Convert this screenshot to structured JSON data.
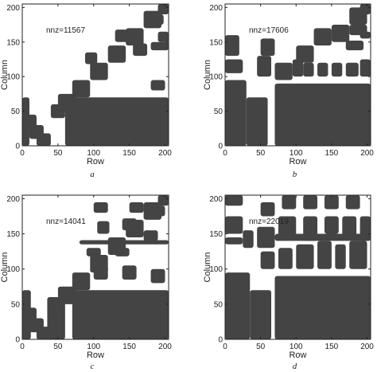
{
  "chart_data": [
    {
      "type": "heatmap",
      "panel": "a",
      "caption": "a",
      "annotation": "nnz=11567",
      "xlabel": "Row",
      "ylabel": "Column",
      "xlim": [
        0,
        205
      ],
      "ylim": [
        0,
        205
      ],
      "xticks": [
        0,
        50,
        100,
        150,
        200
      ],
      "yticks": [
        0,
        50,
        100,
        150,
        200
      ],
      "grid": false,
      "nonzero_regions": [
        [
          70,
          0,
          205,
          70
        ],
        [
          0,
          0,
          10,
          70
        ],
        [
          0,
          25,
          20,
          45
        ],
        [
          10,
          10,
          30,
          30
        ],
        [
          20,
          0,
          40,
          18
        ],
        [
          40,
          40,
          60,
          60
        ],
        [
          50,
          50,
          75,
          75
        ],
        [
          70,
          70,
          95,
          95
        ],
        [
          95,
          95,
          120,
          120
        ],
        [
          120,
          120,
          145,
          145
        ],
        [
          145,
          145,
          170,
          170
        ],
        [
          170,
          170,
          195,
          195
        ],
        [
          190,
          190,
          205,
          205
        ],
        [
          60,
          0,
          75,
          70
        ],
        [
          88,
          118,
          105,
          135
        ],
        [
          130,
          150,
          148,
          168
        ],
        [
          155,
          130,
          175,
          148
        ],
        [
          180,
          175,
          198,
          190
        ],
        [
          180,
          138,
          205,
          150
        ],
        [
          190,
          150,
          205,
          165
        ],
        [
          180,
          80,
          200,
          95
        ]
      ]
    },
    {
      "type": "heatmap",
      "panel": "b",
      "caption": "b",
      "annotation": "nnz=17606",
      "xlabel": "Row",
      "ylabel": "Column",
      "xlim": [
        0,
        205
      ],
      "ylim": [
        0,
        205
      ],
      "xticks": [
        0,
        50,
        100,
        150,
        200
      ],
      "yticks": [
        0,
        50,
        100,
        150,
        200
      ],
      "grid": false,
      "nonzero_regions": [
        [
          70,
          0,
          205,
          90
        ],
        [
          0,
          0,
          30,
          95
        ],
        [
          30,
          0,
          60,
          70
        ],
        [
          0,
          130,
          20,
          160
        ],
        [
          0,
          105,
          25,
          125
        ],
        [
          45,
          100,
          65,
          130
        ],
        [
          50,
          130,
          70,
          155
        ],
        [
          70,
          95,
          95,
          120
        ],
        [
          95,
          100,
          110,
          125
        ],
        [
          100,
          120,
          125,
          145
        ],
        [
          110,
          100,
          125,
          120
        ],
        [
          130,
          100,
          145,
          120
        ],
        [
          125,
          145,
          150,
          170
        ],
        [
          150,
          150,
          175,
          175
        ],
        [
          175,
          175,
          200,
          200
        ],
        [
          190,
          190,
          205,
          205
        ],
        [
          150,
          100,
          165,
          120
        ],
        [
          170,
          100,
          188,
          120
        ],
        [
          190,
          100,
          205,
          125
        ],
        [
          170,
          138,
          195,
          152
        ],
        [
          175,
          160,
          200,
          175
        ],
        [
          190,
          155,
          205,
          165
        ]
      ]
    },
    {
      "type": "heatmap",
      "panel": "c",
      "caption": "c",
      "annotation": "nnz=14041",
      "xlabel": "Row",
      "ylabel": "Column",
      "xlim": [
        0,
        205
      ],
      "ylim": [
        0,
        205
      ],
      "xticks": [
        0,
        50,
        100,
        150,
        200
      ],
      "yticks": [
        0,
        50,
        100,
        150,
        200
      ],
      "grid": false,
      "nonzero_regions": [
        [
          70,
          0,
          205,
          70
        ],
        [
          0,
          0,
          12,
          70
        ],
        [
          0,
          25,
          20,
          45
        ],
        [
          10,
          10,
          30,
          30
        ],
        [
          20,
          0,
          40,
          18
        ],
        [
          35,
          0,
          60,
          60
        ],
        [
          50,
          50,
          75,
          75
        ],
        [
          70,
          70,
          95,
          95
        ],
        [
          95,
          95,
          120,
          120
        ],
        [
          120,
          120,
          145,
          145
        ],
        [
          145,
          145,
          170,
          170
        ],
        [
          170,
          170,
          195,
          195
        ],
        [
          190,
          190,
          205,
          205
        ],
        [
          100,
          85,
          120,
          105
        ],
        [
          140,
          85,
          160,
          105
        ],
        [
          180,
          80,
          200,
          100
        ],
        [
          90,
          118,
          110,
          130
        ],
        [
          130,
          118,
          150,
          130
        ],
        [
          80,
          135,
          205,
          141
        ],
        [
          105,
          150,
          122,
          168
        ],
        [
          140,
          155,
          160,
          172
        ],
        [
          170,
          140,
          190,
          155
        ],
        [
          100,
          180,
          120,
          195
        ],
        [
          150,
          180,
          170,
          195
        ],
        [
          185,
          175,
          200,
          190
        ]
      ]
    },
    {
      "type": "heatmap",
      "panel": "d",
      "caption": "d",
      "annotation": "nnz=22019",
      "xlabel": "Row",
      "ylabel": "Column",
      "xlim": [
        0,
        205
      ],
      "ylim": [
        0,
        205
      ],
      "xticks": [
        0,
        50,
        100,
        150,
        200
      ],
      "yticks": [
        0,
        50,
        100,
        150,
        200
      ],
      "grid": false,
      "nonzero_regions": [
        [
          70,
          0,
          205,
          90
        ],
        [
          0,
          0,
          35,
          95
        ],
        [
          35,
          0,
          65,
          70
        ],
        [
          0,
          190,
          25,
          205
        ],
        [
          0,
          150,
          25,
          175
        ],
        [
          0,
          135,
          25,
          145
        ],
        [
          50,
          100,
          70,
          125
        ],
        [
          45,
          130,
          70,
          160
        ],
        [
          25,
          130,
          40,
          155
        ],
        [
          75,
          100,
          95,
          130
        ],
        [
          100,
          100,
          125,
          135
        ],
        [
          130,
          100,
          150,
          140
        ],
        [
          155,
          100,
          170,
          135
        ],
        [
          175,
          100,
          200,
          140
        ],
        [
          75,
          145,
          100,
          175
        ],
        [
          110,
          140,
          130,
          175
        ],
        [
          140,
          150,
          160,
          175
        ],
        [
          165,
          145,
          185,
          175
        ],
        [
          190,
          140,
          205,
          175
        ],
        [
          80,
          185,
          100,
          205
        ],
        [
          110,
          185,
          130,
          205
        ],
        [
          140,
          185,
          160,
          205
        ],
        [
          170,
          185,
          190,
          205
        ],
        [
          50,
          175,
          70,
          195
        ],
        [
          70,
          140,
          205,
          150
        ]
      ]
    }
  ]
}
